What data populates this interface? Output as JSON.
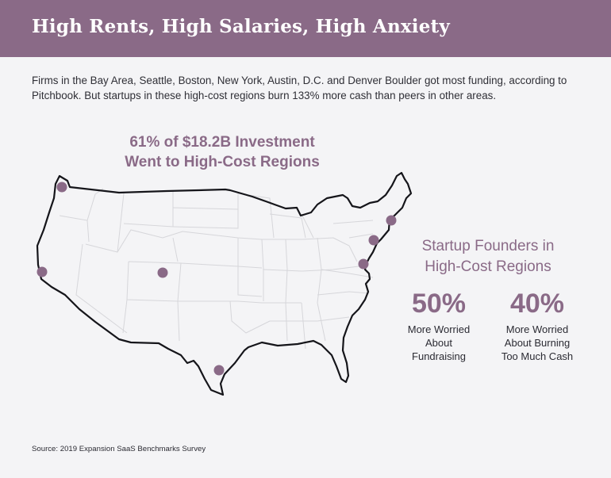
{
  "banner": {
    "title": "High Rents, High Salaries, High Anxiety"
  },
  "intro": "Firms in the Bay Area, Seattle, Boston, New York, Austin, D.C. and Denver Boulder got most funding, according to Pitchbook. But startups in these high-cost regions burn 133% more cash than peers in other areas.",
  "map": {
    "headline_lines": [
      "61% of $18.2B Investment",
      "Went to High-Cost Regions"
    ],
    "marker_color": "#8a6a87"
  },
  "founders": {
    "heading_lines": [
      "Startup Founders in",
      "High-Cost Regions"
    ],
    "stats": [
      {
        "value": "50%",
        "label_lines": [
          "More Worried",
          "About",
          "Fundraising"
        ]
      },
      {
        "value": "40%",
        "label_lines": [
          "More Worried",
          "About Burning",
          "Too Much Cash"
        ]
      }
    ]
  },
  "source": "Source: 2019 Expansion SaaS Benchmarks Survey",
  "colors": {
    "accent": "#8a6a87",
    "background": "#f4f4f6"
  }
}
